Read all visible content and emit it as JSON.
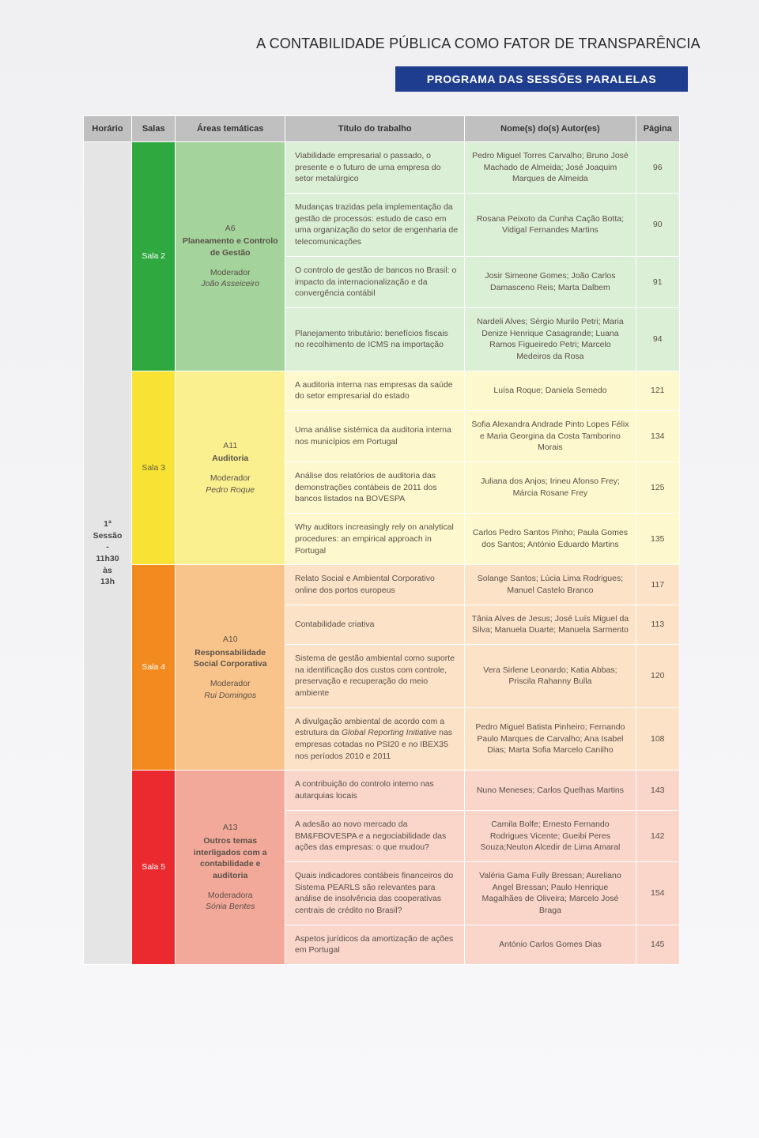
{
  "title": "A CONTABILIDADE PÚBLICA COMO FATOR DE TRANSPARÊNCIA",
  "subtitle": "PROGRAMA DAS SESSÕES PARALELAS",
  "columns": {
    "horario": "Horário",
    "salas": "Salas",
    "areas": "Áreas temáticas",
    "titulo": "Título do trabalho",
    "autor": "Nome(s) do(s) Autor(es)",
    "pagina": "Página"
  },
  "session": {
    "num": "1ª",
    "label": "Sessão",
    "sep": "-",
    "start": "11h30",
    "mid": "às",
    "end": "13h"
  },
  "blocks": [
    {
      "sala": "Sala 2",
      "salaClass": "green",
      "tema": {
        "code": "A6",
        "name": "Planeamento e Controlo de Gestão",
        "modLabel": "Moderador",
        "modName": "João Asseiceiro"
      },
      "rows": [
        {
          "titulo": "Viabilidade empresarial o passado, o presente e o futuro de uma empresa do setor metalúrgico",
          "autor": "Pedro Miguel Torres Carvalho; Bruno José Machado de Almeida; José Joaquim Marques de Almeida",
          "pagina": "96"
        },
        {
          "titulo": "Mudanças trazidas pela implementação da gestão de processos: estudo de caso em uma organização do setor de engenharia de telecomunicações",
          "autor": "Rosana Peixoto da Cunha Cação Botta; Vidigal Fernandes Martins",
          "pagina": "90"
        },
        {
          "titulo": "O controlo de gestão de bancos no Brasil: o impacto da internacionalização e da convergência contábil",
          "autor": "Josir Simeone Gomes; João Carlos Damasceno Reis; Marta Dalbem",
          "pagina": "91"
        },
        {
          "titulo": "Planejamento tributário: benefícios fiscais no recolhimento de ICMS na importação",
          "autor": "Nardeli Alves; Sérgio Murilo Petri; Maria Denize Henrique Casagrande; Luana Ramos Figueiredo Petri; Marcelo Medeiros da Rosa",
          "pagina": "94"
        }
      ]
    },
    {
      "sala": "Sala 3",
      "salaClass": "yellow",
      "tema": {
        "code": "A11",
        "name": "Auditoria",
        "modLabel": "Moderador",
        "modName": "Pedro Roque"
      },
      "rows": [
        {
          "titulo": "A auditoria interna nas empresas da saúde do setor empresarial do estado",
          "autor": "Luísa Roque; Daniela Semedo",
          "pagina": "121"
        },
        {
          "titulo": "Uma análise sistémica da auditoria interna nos municípios em Portugal",
          "autor": "Sofia Alexandra Andrade Pinto Lopes Félix e Maria Georgina da Costa Tamborino Morais",
          "pagina": "134"
        },
        {
          "titulo": "Análise dos relatórios de auditoria das demonstrações contábeis de 2011 dos bancos listados na BOVESPA",
          "autor": "Juliana dos Anjos; Irineu Afonso Frey; Márcia Rosane Frey",
          "pagina": "125"
        },
        {
          "titulo": "Why auditors increasingly rely on analytical procedures: an empirical approach in Portugal",
          "autor": "Carlos Pedro Santos Pinho; Paula Gomes dos Santos; António Eduardo Martins",
          "pagina": "135"
        }
      ]
    },
    {
      "sala": "Sala 4",
      "salaClass": "orange",
      "tema": {
        "code": "A10",
        "name": "Responsabilidade Social Corporativa",
        "modLabel": "Moderador",
        "modName": "Rui Domingos"
      },
      "rows": [
        {
          "titulo": "Relato Social e Ambiental Corporativo online dos portos europeus",
          "autor": "Solange Santos; Lúcia Lima Rodrigues; Manuel Castelo Branco",
          "pagina": "117"
        },
        {
          "titulo": "Contabilidade criativa",
          "autor": "Tânia Alves de Jesus; José Luís Miguel da Silva; Manuela Duarte; Manuela Sarmento",
          "pagina": "113"
        },
        {
          "titulo": "Sistema de gestão ambiental como suporte na identificação dos custos com controle, preservação e recuperação do meio ambiente",
          "autor": "Vera Sirlene Leonardo; Katia Abbas; Priscila Rahanny Bulla",
          "pagina": "120"
        },
        {
          "titulo": "A divulgação ambiental de acordo com a estrutura da ",
          "tituloItalic": "Global Reporting Initiative",
          "tituloAfter": " nas empresas cotadas no PSI20 e no IBEX35 nos períodos 2010 e 2011",
          "autor": "Pedro Miguel Batista Pinheiro; Fernando Paulo Marques de Carvalho; Ana Isabel Dias; Marta Sofia Marcelo Canilho",
          "pagina": "108"
        }
      ]
    },
    {
      "sala": "Sala 5",
      "salaClass": "red",
      "tema": {
        "code": "A13",
        "name": "Outros temas interligados com a contabilidade e auditoria",
        "modLabel": "Moderadora",
        "modName": "Sónia Bentes"
      },
      "rows": [
        {
          "titulo": "A contribuição do controlo interno nas autarquias locais",
          "autor": "Nuno Meneses; Carlos Quelhas Martins",
          "pagina": "143"
        },
        {
          "titulo": "A adesão ao novo mercado da BM&FBOVESPA e a negociabilidade das ações das empresas: o que mudou?",
          "autor": "Camila Bolfe; Ernesto Fernando Rodrigues Vicente; Gueibi Peres Souza;Neuton Alcedir de Lima Amaral",
          "pagina": "142"
        },
        {
          "titulo": "Quais indicadores contábeis financeiros do Sistema PEARLS são relevantes para análise de insolvência das cooperativas centrais de crédito no Brasil?",
          "autor": "Valéria Gama Fully Bressan; Aureliano Angel Bressan; Paulo Henrique Magalhães de Oliveira; Marcelo José Braga",
          "pagina": "154"
        },
        {
          "titulo": "Aspetos jurídicos da amortização de ações em Portugal",
          "autor": "António Carlos Gomes Dias",
          "pagina": "145"
        }
      ]
    }
  ]
}
